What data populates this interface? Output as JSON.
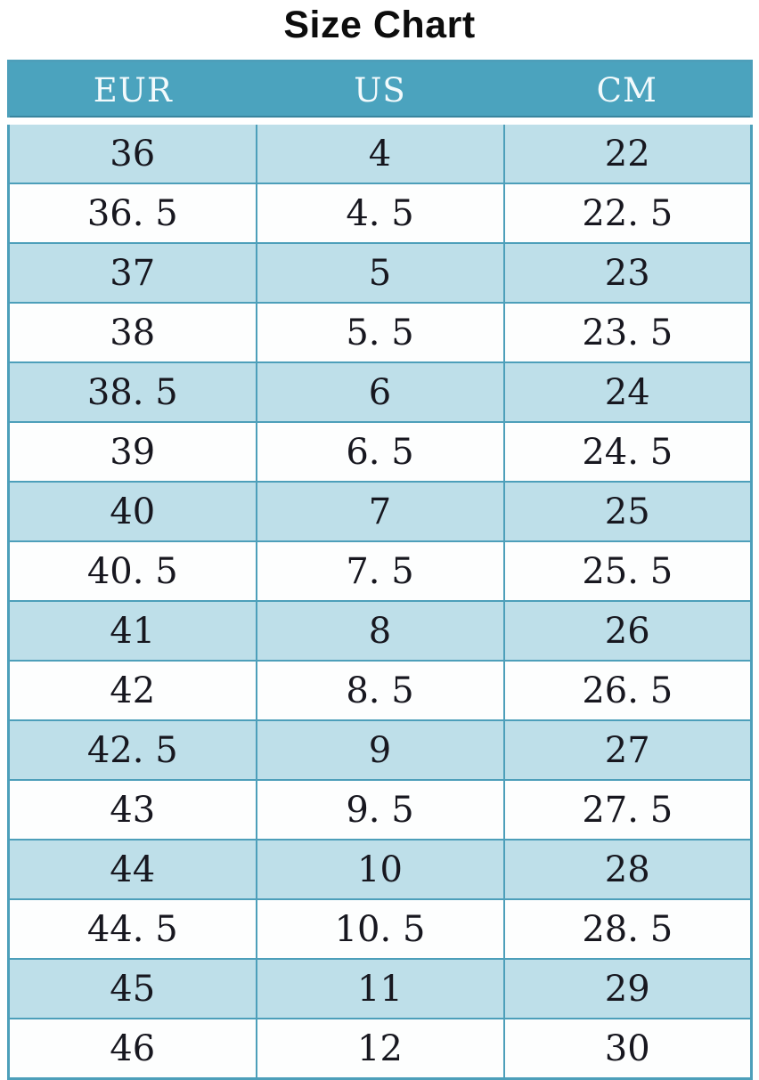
{
  "page": {
    "title": "Size Chart"
  },
  "chart_data": {
    "type": "table",
    "title": "Size Chart",
    "columns": [
      "EUR",
      "US",
      "CM"
    ],
    "rows": [
      [
        "36",
        "4",
        "22"
      ],
      [
        "36. 5",
        "4. 5",
        "22. 5"
      ],
      [
        "37",
        "5",
        "23"
      ],
      [
        "38",
        "5. 5",
        "23. 5"
      ],
      [
        "38. 5",
        "6",
        "24"
      ],
      [
        "39",
        "6. 5",
        "24. 5"
      ],
      [
        "40",
        "7",
        "25"
      ],
      [
        "40. 5",
        "7. 5",
        "25. 5"
      ],
      [
        "41",
        "8",
        "26"
      ],
      [
        "42",
        "8. 5",
        "26. 5"
      ],
      [
        "42. 5",
        "9",
        "27"
      ],
      [
        "43",
        "9. 5",
        "27. 5"
      ],
      [
        "44",
        "10",
        "28"
      ],
      [
        "44. 5",
        "10. 5",
        "28. 5"
      ],
      [
        "45",
        "11",
        "29"
      ],
      [
        "46",
        "12",
        "30"
      ]
    ],
    "layout": {
      "striped": true,
      "stripe_pattern": "odd-rows-blue-even-rows-white",
      "grid": "on"
    }
  },
  "colors": {
    "header_bg": "#4BA3BE",
    "row_blue_bg": "#BEDFE9",
    "row_white_bg": "#FDFEFE",
    "border": "#4D9FBA",
    "header_text": "#F2FAFC",
    "cell_text": "#17171F",
    "title_text": "#0D0D0D"
  }
}
